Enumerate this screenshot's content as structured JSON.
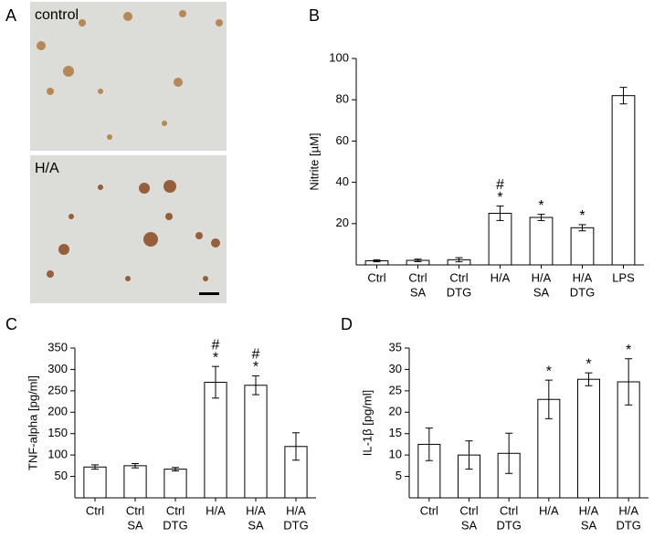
{
  "panel_a": {
    "label": "A",
    "images": [
      "control",
      "H/A"
    ]
  },
  "chart_data": [
    {
      "type": "bar",
      "panel": "B",
      "y_label": "Nitrite [µM]",
      "categories": [
        [
          "Ctrl"
        ],
        [
          "Ctrl",
          "SA"
        ],
        [
          "Ctrl",
          "DTG"
        ],
        [
          "H/A"
        ],
        [
          "H/A",
          "SA"
        ],
        [
          "H/A",
          "DTG"
        ],
        [
          "LPS"
        ]
      ],
      "values": [
        2,
        2.2,
        2.5,
        25,
        23,
        18,
        82
      ],
      "errors": [
        0.5,
        0.6,
        1,
        3.5,
        1.5,
        1.5,
        4
      ],
      "annotations": [
        null,
        null,
        null,
        [
          "#",
          "*"
        ],
        [
          "*"
        ],
        [
          "*"
        ],
        null
      ],
      "color": "#ffffff",
      "ylim": [
        0,
        100
      ],
      "yticks": [
        20,
        40,
        60,
        80,
        100
      ]
    },
    {
      "type": "bar",
      "panel": "C",
      "y_label": "TNF-alpha [pg/ml]",
      "categories": [
        [
          "Ctrl"
        ],
        [
          "Ctrl",
          "SA"
        ],
        [
          "Ctrl",
          "DTG"
        ],
        [
          "H/A"
        ],
        [
          "H/A",
          "SA"
        ],
        [
          "H/A",
          "DTG"
        ]
      ],
      "values": [
        72,
        75,
        67,
        270,
        263,
        120
      ],
      "errors": [
        5,
        5,
        4,
        37,
        22,
        32
      ],
      "annotations": [
        null,
        null,
        null,
        [
          "#",
          "*"
        ],
        [
          "#",
          "*"
        ],
        null
      ],
      "color": "#ffffff",
      "ylim": [
        0,
        350
      ],
      "yticks": [
        50,
        100,
        150,
        200,
        250,
        300,
        350
      ]
    },
    {
      "type": "bar",
      "panel": "D",
      "y_label": "IL-1β [pg/ml]",
      "categories": [
        [
          "Ctrl"
        ],
        [
          "Ctrl",
          "SA"
        ],
        [
          "Ctrl",
          "DTG"
        ],
        [
          "H/A"
        ],
        [
          "H/A",
          "SA"
        ],
        [
          "H/A",
          "DTG"
        ]
      ],
      "values": [
        12.5,
        10,
        10.4,
        23,
        27.7,
        27.1
      ],
      "errors": [
        3.8,
        3.3,
        4.7,
        4.5,
        1.5,
        5.4
      ],
      "annotations": [
        null,
        null,
        null,
        [
          "*"
        ],
        [
          "*"
        ],
        [
          "*"
        ]
      ],
      "color": "#ffffff",
      "ylim": [
        0,
        35
      ],
      "yticks": [
        5,
        10,
        15,
        20,
        25,
        30,
        35
      ]
    }
  ]
}
